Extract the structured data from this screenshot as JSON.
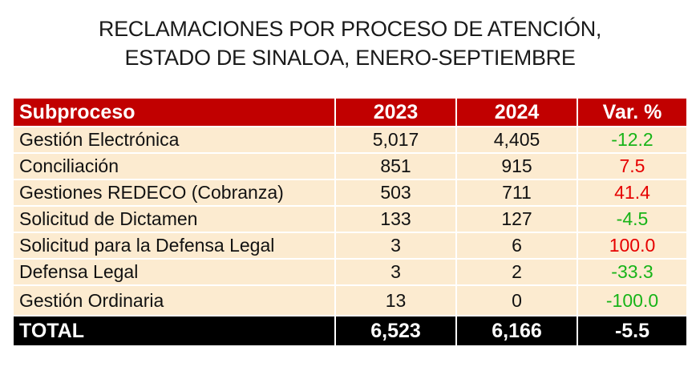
{
  "title": {
    "line1": "RECLAMACIONES POR PROCESO DE ATENCIÓN,",
    "line2": "ESTADO DE SINALOA, ENERO-SEPTIEMBRE"
  },
  "header": [
    "Subproceso",
    "2023",
    "2024",
    "Var. %"
  ],
  "rows": [
    {
      "name": "Gestión Electrónica",
      "y2023": "5,017",
      "y2024": "4,405",
      "var": "-12.2"
    },
    {
      "name": "Conciliación",
      "y2023": "851",
      "y2024": "915",
      "var": "7.5"
    },
    {
      "name": "Gestiones REDECO (Cobranza)",
      "y2023": "503",
      "y2024": "711",
      "var": "41.4"
    },
    {
      "name": "Solicitud de Dictamen",
      "y2023": "133",
      "y2024": "127",
      "var": "-4.5"
    },
    {
      "name": "Solicitud para la Defensa Legal",
      "y2023": "3",
      "y2024": "6",
      "var": "100.0"
    },
    {
      "name": "Defensa Legal",
      "y2023": "3",
      "y2024": "2",
      "var": "-33.3"
    },
    {
      "name": "Gestión Ordinaria",
      "y2023": "13",
      "y2024": "0",
      "var": "-100.0"
    }
  ],
  "total": {
    "label": "TOTAL",
    "y2023": "6,523",
    "y2024": "6,166",
    "var": "-5.5"
  },
  "colors": {
    "header_bg": "#c10000",
    "row_bg": "#fcebd0",
    "total_bg": "#000000",
    "negative": "#18b418",
    "positive": "#e60000"
  }
}
